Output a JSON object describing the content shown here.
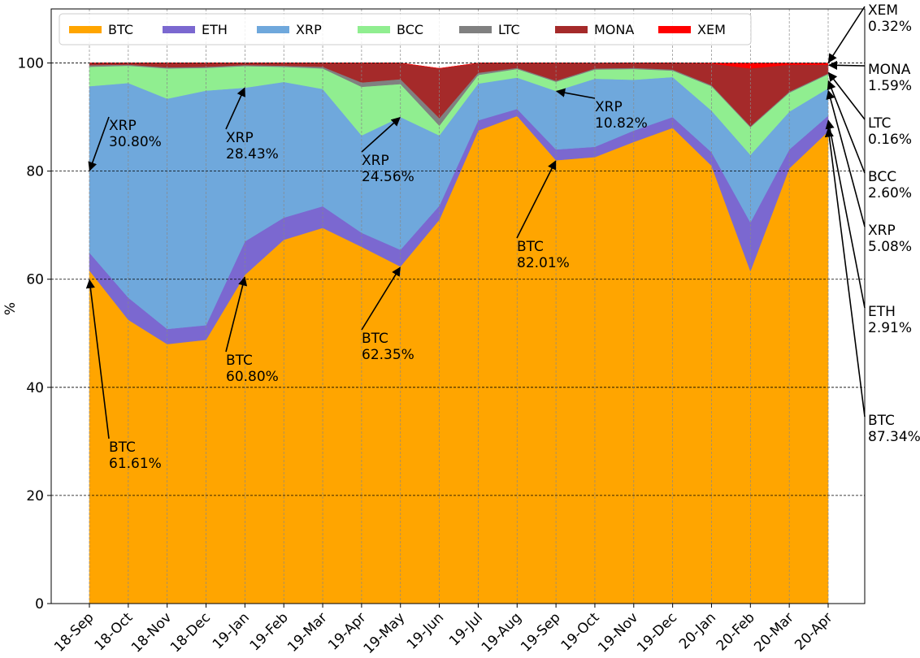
{
  "chart_data": {
    "type": "area",
    "stacked": true,
    "title": "",
    "xlabel": "",
    "ylabel": "%",
    "ylim": [
      0,
      110
    ],
    "yticks": [
      "0",
      "20",
      "40",
      "60",
      "80",
      "100"
    ],
    "grid": true,
    "legend_placement": "top-left",
    "categories": [
      "18-Sep",
      "18-Oct",
      "18-Nov",
      "18-Dec",
      "19-Jan",
      "19-Feb",
      "19-Mar",
      "19-Apr",
      "19-May",
      "19-Jun",
      "19-Jul",
      "19-Aug",
      "19-Sep",
      "19-Oct",
      "19-Nov",
      "19-Dec",
      "20-Jan",
      "20-Feb",
      "20-Mar",
      "20-Apr"
    ],
    "series": [
      {
        "name": "BTC",
        "color": "#FFA500",
        "values": [
          61.61,
          52.5,
          48.0,
          48.8,
          60.8,
          67.3,
          69.5,
          66.0,
          62.35,
          71.0,
          87.5,
          90.2,
          82.01,
          82.6,
          85.4,
          88.0,
          81.0,
          61.5,
          80.5,
          87.34
        ]
      },
      {
        "name": "ETH",
        "color": "#7B68D0",
        "values": [
          3.3,
          4.1,
          2.8,
          2.7,
          6.2,
          4.1,
          4.0,
          2.6,
          3.1,
          2.6,
          1.9,
          1.3,
          2.0,
          1.9,
          2.1,
          2.0,
          2.5,
          9.0,
          3.5,
          2.91
        ]
      },
      {
        "name": "XRP",
        "color": "#6FA8DC",
        "values": [
          30.8,
          39.7,
          42.6,
          43.4,
          28.43,
          25.1,
          21.7,
          18.0,
          24.56,
          13.0,
          6.8,
          5.8,
          10.82,
          12.6,
          9.4,
          7.4,
          7.7,
          12.5,
          7.0,
          5.08
        ]
      },
      {
        "name": "BCC",
        "color": "#90EE90",
        "values": [
          3.6,
          3.2,
          5.6,
          4.2,
          4.0,
          2.8,
          3.8,
          9.0,
          6.1,
          1.8,
          1.6,
          1.6,
          1.7,
          1.7,
          2.0,
          1.2,
          4.5,
          5.1,
          3.5,
          2.6
        ]
      },
      {
        "name": "LTC",
        "color": "#808080",
        "values": [
          0.3,
          0.2,
          0.2,
          0.2,
          0.2,
          0.2,
          0.3,
          0.8,
          0.9,
          1.4,
          0.4,
          0.2,
          0.2,
          0.2,
          0.2,
          0.2,
          0.2,
          0.2,
          0.2,
          0.16
        ]
      },
      {
        "name": "MONA",
        "color": "#A52A2A",
        "values": [
          0.39,
          0.3,
          0.8,
          0.7,
          0.37,
          0.5,
          0.7,
          3.6,
          2.99,
          9.2,
          1.8,
          0.9,
          3.27,
          0.98,
          0.9,
          1.2,
          4.0,
          10.7,
          5.0,
          1.59
        ]
      },
      {
        "name": "XEM",
        "color": "#FF0000",
        "values": [
          0,
          0,
          0,
          0,
          0,
          0,
          0,
          0,
          0,
          0,
          0,
          0,
          0,
          0,
          0,
          0,
          0.1,
          1.0,
          0.3,
          0.32
        ]
      }
    ],
    "annotations": [
      {
        "name": "ann-xrp-18sep",
        "line1": "XRP",
        "line2": "30.80%",
        "cat": 0,
        "tip": 80.0
      },
      {
        "name": "ann-btc-18sep",
        "line1": "BTC",
        "line2": "61.61%",
        "cat": 0,
        "tip": 60.0
      },
      {
        "name": "ann-xrp-19jan",
        "line1": "XRP",
        "line2": "28.43%",
        "cat": 4,
        "tip": 95.5
      },
      {
        "name": "ann-btc-19jan",
        "line1": "BTC",
        "line2": "60.80%",
        "cat": 4,
        "tip": 60.5
      },
      {
        "name": "ann-xrp-19may",
        "line1": "XRP",
        "line2": "24.56%",
        "cat": 8,
        "tip": 90.0
      },
      {
        "name": "ann-btc-19may",
        "line1": "BTC",
        "line2": "62.35%",
        "cat": 8,
        "tip": 62.3
      },
      {
        "name": "ann-xrp-19sep",
        "line1": "XRP",
        "line2": "10.82%",
        "cat": 12,
        "tip": 94.8
      },
      {
        "name": "ann-btc-19sep",
        "line1": "BTC",
        "line2": "82.01%",
        "cat": 12,
        "tip": 82.0
      },
      {
        "name": "ann-xem-20apr",
        "line1": "XEM",
        "line2": "0.32%",
        "cat": 19,
        "tip": 100.0
      },
      {
        "name": "ann-mona-20apr",
        "line1": "MONA",
        "line2": "1.59%",
        "cat": 19,
        "tip": 99.6
      },
      {
        "name": "ann-ltc-20apr",
        "line1": "LTC",
        "line2": "0.16%",
        "cat": 19,
        "tip": 98.3
      },
      {
        "name": "ann-bcc-20apr",
        "line1": "BCC",
        "line2": "2.60%",
        "cat": 19,
        "tip": 96.8
      },
      {
        "name": "ann-xrp-20apr",
        "line1": "XRP",
        "line2": "5.08%",
        "cat": 19,
        "tip": 95.0
      },
      {
        "name": "ann-eth-20apr",
        "line1": "ETH",
        "line2": "2.91%",
        "cat": 19,
        "tip": 89.5
      },
      {
        "name": "ann-btc-20apr",
        "line1": "BTC",
        "line2": "87.34%",
        "cat": 19,
        "tip": 88.0
      }
    ]
  }
}
